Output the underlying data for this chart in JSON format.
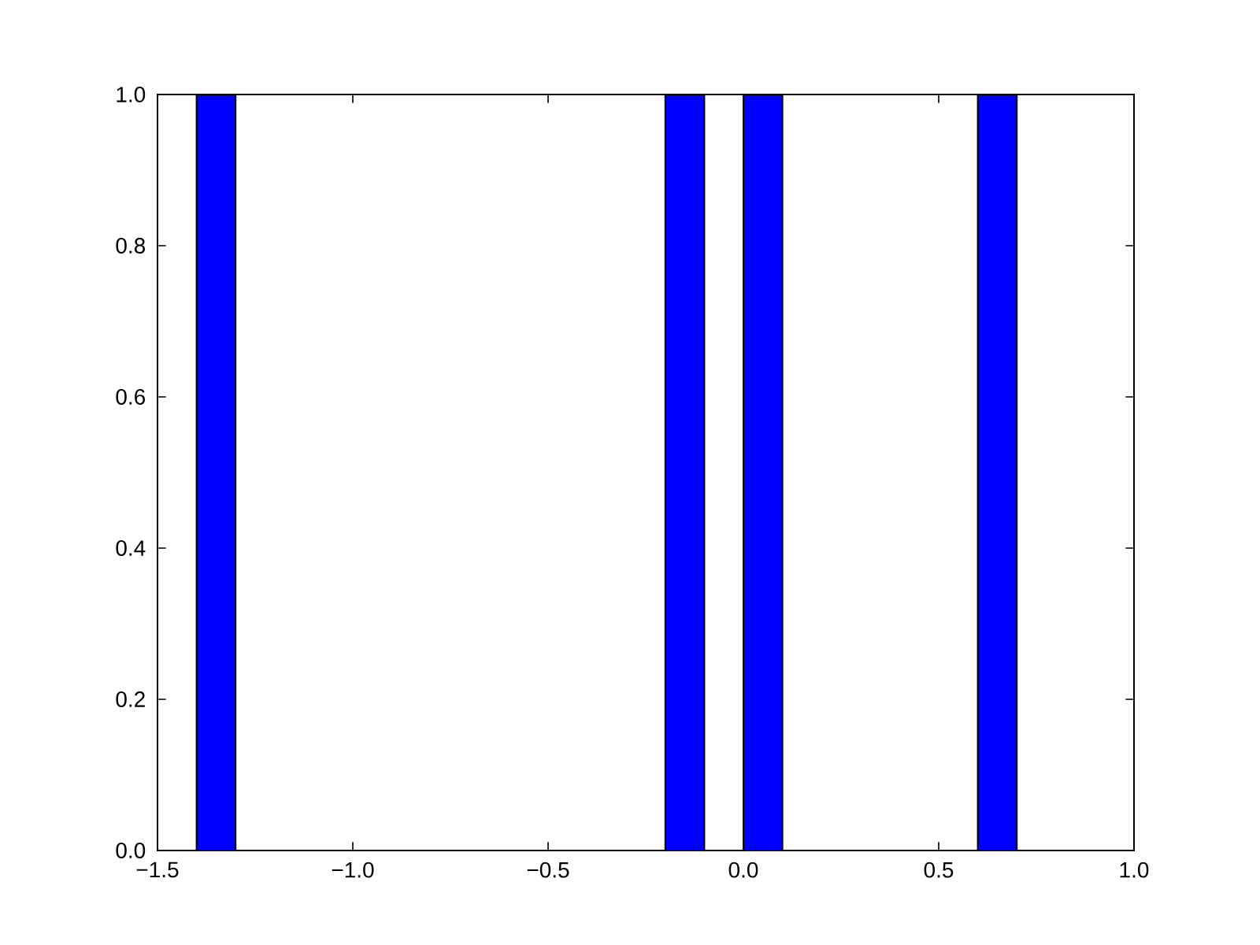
{
  "chart_data": {
    "type": "histogram",
    "color": "#0000ff",
    "bins": [
      -1.4,
      -1.3,
      -1.2,
      -1.1,
      -1.0,
      -0.9,
      -0.8,
      -0.7,
      -0.6,
      -0.5,
      -0.4,
      -0.3,
      -0.2,
      -0.1,
      0.0,
      0.1,
      0.2,
      0.3,
      0.4,
      0.5,
      0.6,
      0.7
    ],
    "values": [
      1,
      0,
      0,
      0,
      0,
      0,
      0,
      0,
      0,
      0,
      0,
      0,
      1,
      0,
      1,
      0,
      0,
      0,
      0,
      0,
      1
    ],
    "xlim": [
      -1.5,
      1.0
    ],
    "ylim": [
      0.0,
      1.0
    ],
    "xticks": [
      {
        "value": -1.5,
        "label": "−1.5"
      },
      {
        "value": -1.0,
        "label": "−1.0"
      },
      {
        "value": -0.5,
        "label": "−0.5"
      },
      {
        "value": 0.0,
        "label": "0.0"
      },
      {
        "value": 0.5,
        "label": "0.5"
      },
      {
        "value": 1.0,
        "label": "1.0"
      }
    ],
    "yticks": [
      {
        "value": 0.0,
        "label": "0.0"
      },
      {
        "value": 0.2,
        "label": "0.2"
      },
      {
        "value": 0.4,
        "label": "0.4"
      },
      {
        "value": 0.6,
        "label": "0.6"
      },
      {
        "value": 0.8,
        "label": "0.8"
      },
      {
        "value": 1.0,
        "label": "1.0"
      }
    ]
  }
}
